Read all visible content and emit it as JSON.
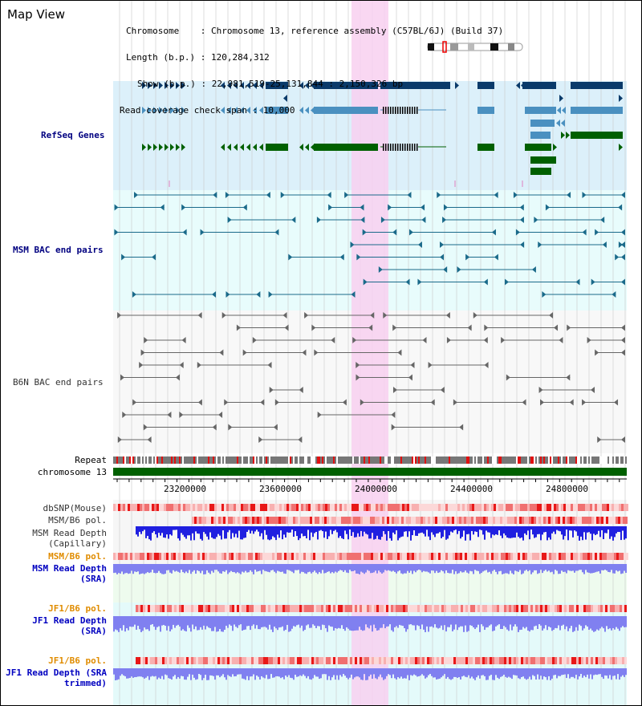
{
  "title": "Map View",
  "info": {
    "chromosome": "Chromosome    : Chromosome 13, reference assembly (C57BL/6J) (Build 37)",
    "length": "Length (b.p.) : 120,284,312",
    "show": "Show (b.p.) : 22,981,519-25,131,844 : 2,150,326 bp",
    "coverage": "Read coverage check span : 10,000"
  },
  "tracks": {
    "refseq": "RefSeq Genes",
    "msm_bac": "MSM BAC end pairs",
    "b6n_bac": "B6N BAC end pairs",
    "repeat": "Repeat",
    "chromosome": "chromosome 13",
    "dbsnp": "dbSNP(Mouse)",
    "msm_b6_pol_1": "MSM/B6 pol.",
    "msm_depth_cap": "MSM Read Depth (Capillary)",
    "msm_b6_pol_2": "MSM/B6 pol.",
    "msm_depth_sra": "MSM Read Depth (SRA)",
    "jf1_b6_pol_1": "JF1/B6 pol.",
    "jf1_depth_sra": "JF1 Read Depth (SRA)",
    "jf1_b6_pol_2": "JF1/B6 pol.",
    "jf1_depth_trim": "JF1 Read Depth (SRA trimmed)"
  },
  "axis": {
    "ticks": [
      "23200000",
      "23600000",
      "24000000",
      "24400000",
      "24800000"
    ]
  },
  "colors": {
    "refseq_bg": "#dcf0fa",
    "bac_bg": "#e8fcfc",
    "highlight": "#f8d0f0",
    "gene_dark": "#0a3a6a",
    "gene_light": "#4a90c0",
    "gene_green": "#006000",
    "depth_blue": "#2020e0",
    "depth_light": "#8080f0"
  }
}
